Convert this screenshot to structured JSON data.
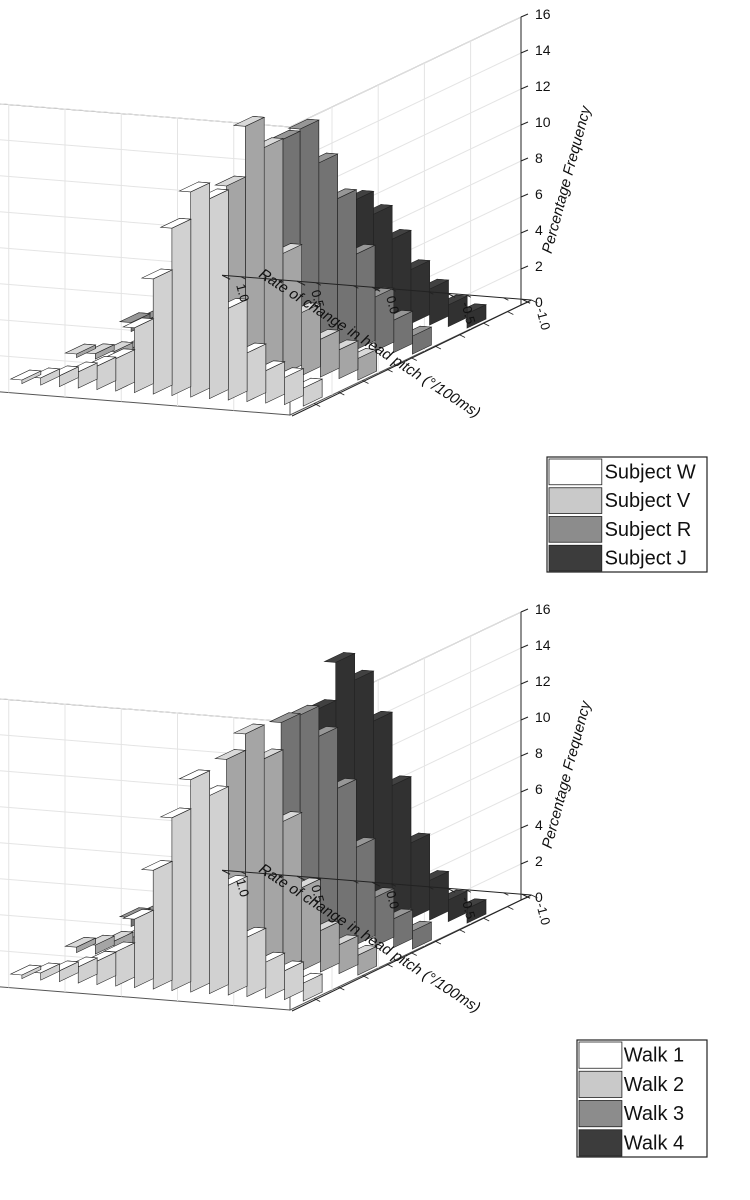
{
  "figure": {
    "charts": [
      {
        "type": "bar",
        "variant": "3d-grouped-histogram",
        "title": "",
        "xlabel": "Rate of change in head pitch (°/100ms)",
        "ylabel": "",
        "zlabel": "Percentage Frequency",
        "x_ticks": [
          "1.0",
          "0.5",
          "0.0",
          "-0.5",
          "-1.0"
        ],
        "z_ticks": [
          "0",
          "2",
          "4",
          "6",
          "8",
          "10",
          "12",
          "14",
          "16"
        ],
        "zlim": [
          0,
          16
        ],
        "legend_position": "right",
        "series_colors": [
          "#ffffff",
          "#c9c9c9",
          "#8c8c8c",
          "#3c3c3c"
        ],
        "series": [
          {
            "name": "Subject W",
            "values": [
              1.0,
              1.5,
              1.8,
              2.7,
              5.1,
              11.1,
              11.4,
              9.3,
              6.4,
              3.6,
              1.8,
              1.3,
              0.9,
              0.6,
              0.4,
              0.2
            ]
          },
          {
            "name": "Subject V",
            "values": [
              1.2,
              1.6,
              2.1,
              3.5,
              6.7,
              12.5,
              13.6,
              10.2,
              6.2,
              3.4,
              1.5,
              1.1,
              0.8,
              0.5,
              0.3,
              0.2
            ]
          },
          {
            "name": "Subject R",
            "values": [
              1.0,
              1.8,
              3.0,
              5.3,
              8.3,
              10.2,
              12.0,
              11.3,
              8.2,
              5.7,
              3.6,
              2.5,
              1.7,
              1.1,
              0.8,
              0.5
            ]
          },
          {
            "name": "Subject J",
            "values": [
              0.8,
              1.2,
              2.0,
              3.0,
              4.6,
              5.9,
              6.6,
              6.1,
              5.5,
              4.6,
              3.8,
              3.0,
              2.3,
              1.8,
              1.4,
              1.1
            ]
          }
        ]
      },
      {
        "type": "bar",
        "variant": "3d-grouped-histogram",
        "title": "",
        "xlabel": "Rate of change in head pitch (°/100ms)",
        "ylabel": "",
        "zlabel": "Percentage Frequency",
        "x_ticks": [
          "1.0",
          "0.5",
          "0.0",
          "-0.5",
          "-1.0"
        ],
        "z_ticks": [
          "0",
          "2",
          "4",
          "6",
          "8",
          "10",
          "12",
          "14",
          "16"
        ],
        "zlim": [
          0,
          16
        ],
        "legend_position": "right",
        "series_colors": [
          "#ffffff",
          "#c9c9c9",
          "#8c8c8c",
          "#3c3c3c"
        ],
        "series": [
          {
            "name": "Walk 1",
            "values": [
              1.0,
              1.6,
              2.0,
              3.3,
              6.1,
              11.0,
              11.8,
              9.6,
              6.6,
              3.8,
              1.9,
              1.3,
              0.9,
              0.6,
              0.4,
              0.2
            ]
          },
          {
            "name": "Walk 2",
            "values": [
              1.1,
              1.6,
              2.3,
              4.6,
              8.2,
              11.6,
              12.9,
              11.4,
              8.2,
              5.2,
              2.6,
              1.7,
              1.1,
              0.8,
              0.5,
              0.3
            ]
          },
          {
            "name": "Walk 3",
            "values": [
              1.0,
              1.6,
              2.7,
              5.4,
              8.6,
              11.4,
              12.5,
              12.0,
              9.6,
              6.7,
              4.2,
              2.8,
              1.8,
              1.2,
              0.8,
              0.5
            ]
          },
          {
            "name": "Walk 4",
            "values": [
              0.8,
              1.2,
              2.2,
              4.2,
              7.3,
              10.8,
              13.0,
              13.9,
              11.2,
              8.2,
              5.8,
              4.0,
              2.6,
              1.6,
              1.0,
              0.6
            ]
          }
        ]
      }
    ]
  }
}
